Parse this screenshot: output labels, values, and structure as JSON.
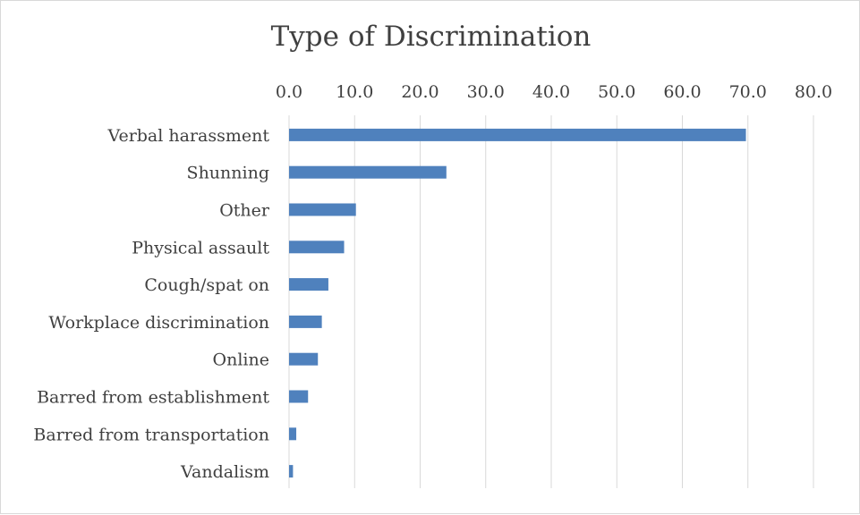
{
  "chart_data": {
    "type": "bar",
    "orientation": "horizontal",
    "title": "Type of Discrimination",
    "categories": [
      "Verbal harassment",
      "Shunning",
      "Other",
      "Physical assault",
      "Cough/spat on",
      "Workplace discrimination",
      "Online",
      "Barred from establishment",
      "Barred from transportation",
      "Vandalism"
    ],
    "values": [
      69.7,
      24.0,
      10.2,
      8.4,
      6.0,
      5.0,
      4.4,
      2.9,
      1.1,
      0.6
    ],
    "xlim": [
      0,
      80
    ],
    "xticks": [
      "0.0",
      "10.0",
      "20.0",
      "30.0",
      "40.0",
      "50.0",
      "60.0",
      "70.0",
      "80.0"
    ],
    "x_axis_position": "top",
    "grid": true,
    "bar_color": "#4f81bd",
    "grid_color": "#d9d9d9",
    "text_color": "#404040"
  }
}
